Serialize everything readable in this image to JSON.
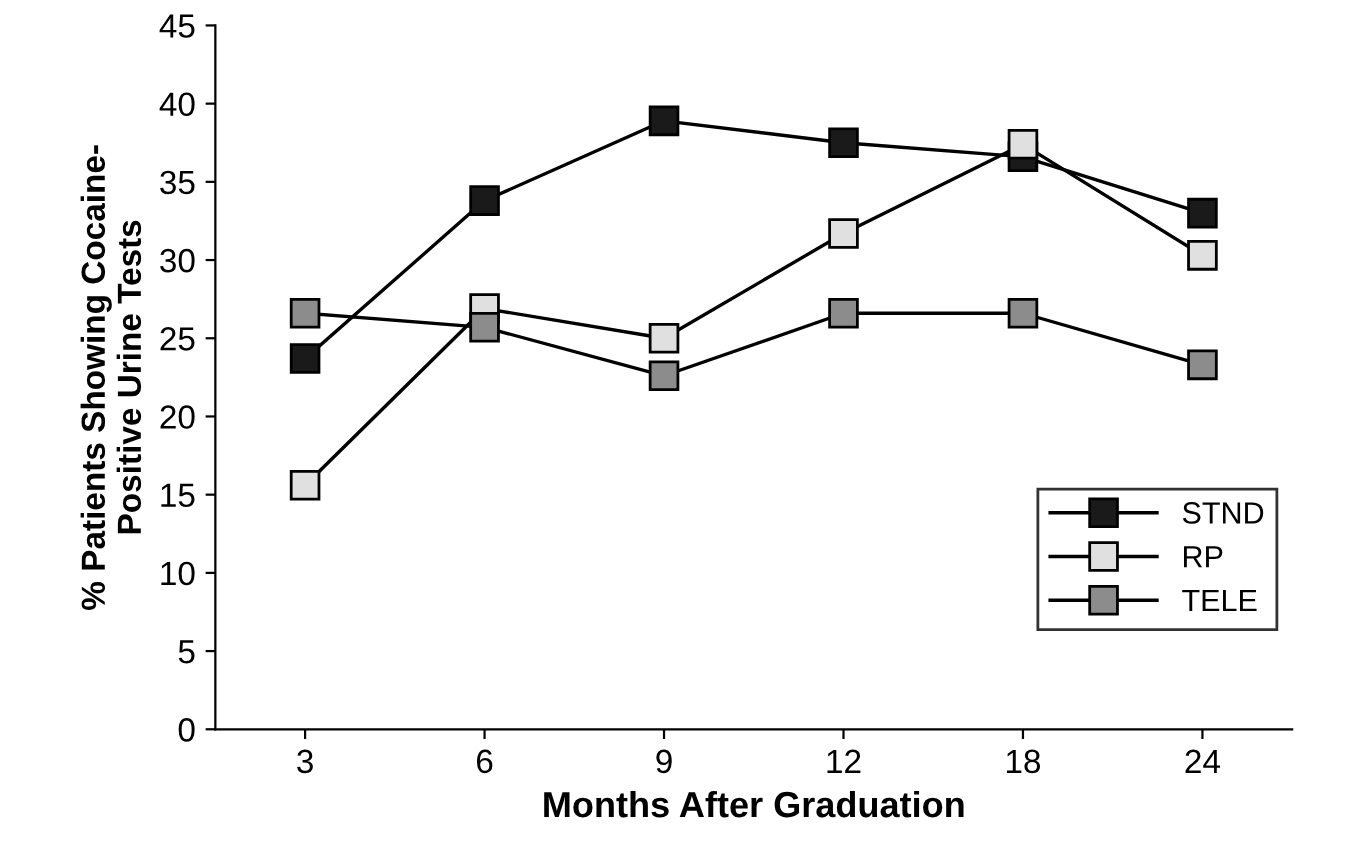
{
  "chart_data": {
    "type": "line",
    "xlabel": "Months After Graduation",
    "ylabel": "% Patients Showing Cocaine-\nPositive Urine Tests",
    "categories": [
      "3",
      "6",
      "9",
      "12",
      "18",
      "24"
    ],
    "series": [
      {
        "name": "STND",
        "color": "#1a1a1a",
        "values": [
          23.7,
          33.8,
          38.9,
          37.5,
          36.6,
          33.0
        ]
      },
      {
        "name": "RP",
        "color": "#e0e0e0",
        "values": [
          15.6,
          26.9,
          25.0,
          31.7,
          37.4,
          30.3
        ]
      },
      {
        "name": "TELE",
        "color": "#8c8c8c",
        "values": [
          26.6,
          25.7,
          22.6,
          26.6,
          26.6,
          23.3
        ]
      }
    ],
    "ylim": [
      0,
      45
    ],
    "yticks": [
      0,
      5,
      10,
      15,
      20,
      25,
      30,
      35,
      40,
      45
    ],
    "grid": false,
    "legend": "bottom right",
    "marker": "square",
    "line_style": "solid"
  }
}
